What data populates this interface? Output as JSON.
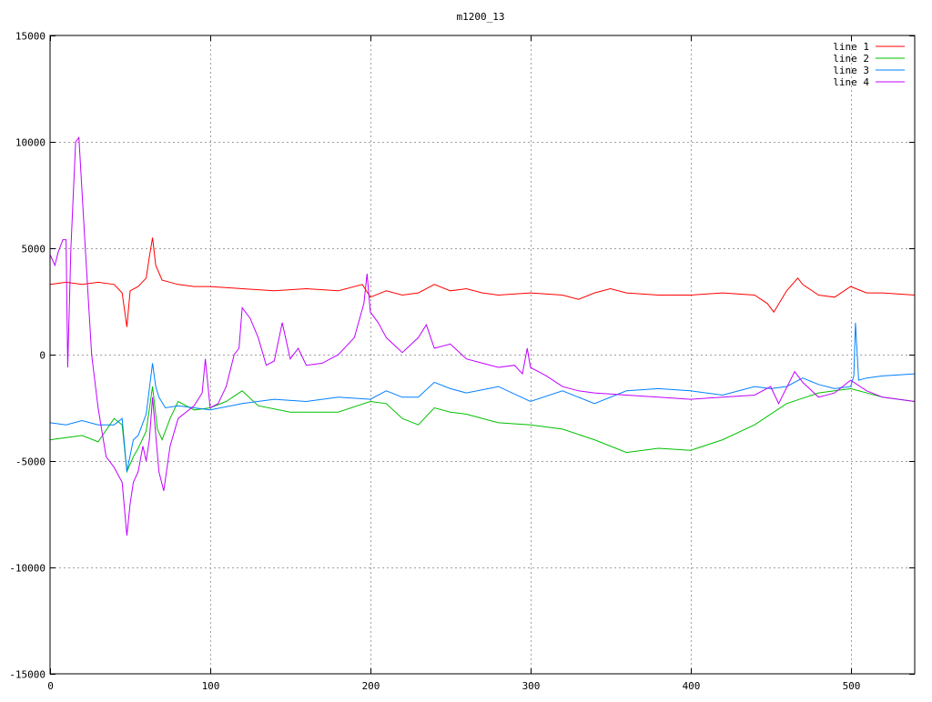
{
  "chart_data": {
    "type": "line",
    "title": "m1200_13",
    "xlabel": "",
    "ylabel": "",
    "xlim": [
      0,
      540
    ],
    "ylim": [
      -15000,
      15000
    ],
    "xticks": [
      0,
      100,
      200,
      300,
      400,
      500
    ],
    "yticks": [
      -15000,
      -10000,
      -5000,
      0,
      5000,
      10000,
      15000
    ],
    "grid": true,
    "legend": "top-right",
    "series": [
      {
        "name": "line 1",
        "color": "#ff0000",
        "x": [
          0,
          10,
          20,
          30,
          40,
          45,
          48,
          50,
          55,
          60,
          62,
          64,
          66,
          70,
          80,
          90,
          100,
          120,
          140,
          160,
          180,
          195,
          200,
          210,
          220,
          230,
          240,
          250,
          260,
          270,
          280,
          300,
          320,
          330,
          340,
          350,
          360,
          380,
          400,
          420,
          440,
          448,
          452,
          460,
          467,
          470,
          480,
          490,
          500,
          510,
          520,
          540
        ],
        "y": [
          3300,
          3400,
          3300,
          3400,
          3300,
          2900,
          1300,
          3000,
          3200,
          3600,
          4600,
          5500,
          4200,
          3500,
          3300,
          3200,
          3200,
          3100,
          3000,
          3100,
          3000,
          3300,
          2700,
          3000,
          2800,
          2900,
          3300,
          3000,
          3100,
          2900,
          2800,
          2900,
          2800,
          2600,
          2900,
          3100,
          2900,
          2800,
          2800,
          2900,
          2800,
          2400,
          2000,
          3000,
          3600,
          3300,
          2800,
          2700,
          3200,
          2900,
          2900,
          2800
        ]
      },
      {
        "name": "line 2",
        "color": "#00c000",
        "x": [
          0,
          10,
          20,
          30,
          40,
          45,
          48,
          52,
          55,
          60,
          64,
          67,
          70,
          75,
          80,
          90,
          100,
          110,
          120,
          130,
          150,
          180,
          200,
          210,
          220,
          230,
          240,
          250,
          260,
          280,
          300,
          320,
          340,
          360,
          380,
          400,
          420,
          440,
          460,
          480,
          500,
          520,
          540
        ],
        "y": [
          -4000,
          -3900,
          -3800,
          -4100,
          -3000,
          -3300,
          -5500,
          -4800,
          -4400,
          -3600,
          -1500,
          -3500,
          -4000,
          -3000,
          -2200,
          -2600,
          -2500,
          -2200,
          -1700,
          -2400,
          -2700,
          -2700,
          -2200,
          -2300,
          -3000,
          -3300,
          -2500,
          -2700,
          -2800,
          -3200,
          -3300,
          -3500,
          -4000,
          -4600,
          -4400,
          -4500,
          -4000,
          -3300,
          -2300,
          -1800,
          -1600,
          -2000,
          -2200
        ]
      },
      {
        "name": "line 3",
        "color": "#0080ff",
        "x": [
          0,
          10,
          20,
          30,
          40,
          45,
          48,
          52,
          55,
          60,
          64,
          66,
          68,
          72,
          80,
          100,
          120,
          140,
          160,
          180,
          200,
          210,
          220,
          230,
          240,
          250,
          260,
          280,
          300,
          320,
          340,
          360,
          380,
          400,
          420,
          440,
          450,
          460,
          470,
          480,
          490,
          500,
          502,
          503,
          505,
          510,
          520,
          540
        ],
        "y": [
          -3200,
          -3300,
          -3100,
          -3300,
          -3300,
          -3000,
          -5500,
          -4000,
          -3800,
          -2800,
          -400,
          -1500,
          -2000,
          -2500,
          -2400,
          -2600,
          -2300,
          -2100,
          -2200,
          -2000,
          -2100,
          -1700,
          -2000,
          -2000,
          -1300,
          -1600,
          -1800,
          -1500,
          -2200,
          -1700,
          -2300,
          -1700,
          -1600,
          -1700,
          -1900,
          -1500,
          -1600,
          -1500,
          -1100,
          -1400,
          -1600,
          -1500,
          -1000,
          1500,
          -1200,
          -1100,
          -1000,
          -900
        ]
      },
      {
        "name": "line 4",
        "color": "#c000ff",
        "x": [
          0,
          3,
          5,
          8,
          10,
          11,
          13,
          16,
          18,
          22,
          26,
          30,
          35,
          40,
          45,
          48,
          50,
          52,
          55,
          58,
          60,
          62,
          64,
          68,
          71,
          75,
          80,
          90,
          95,
          97,
          100,
          105,
          110,
          115,
          118,
          120,
          125,
          130,
          135,
          140,
          145,
          150,
          155,
          160,
          170,
          180,
          190,
          196,
          198,
          200,
          205,
          210,
          220,
          230,
          235,
          240,
          250,
          260,
          270,
          280,
          290,
          295,
          298,
          300,
          305,
          310,
          320,
          330,
          340,
          360,
          380,
          400,
          420,
          440,
          450,
          455,
          465,
          470,
          480,
          490,
          500,
          510,
          520,
          540
        ],
        "y": [
          4700,
          4200,
          4800,
          5400,
          5400,
          -600,
          5000,
          10000,
          10200,
          5000,
          0,
          -2500,
          -4800,
          -5300,
          -6000,
          -8500,
          -7000,
          -6000,
          -5500,
          -4300,
          -5000,
          -4000,
          -2000,
          -5500,
          -6400,
          -4300,
          -3000,
          -2400,
          -1800,
          -200,
          -2500,
          -2300,
          -1500,
          0,
          300,
          2200,
          1700,
          800,
          -500,
          -300,
          1500,
          -200,
          300,
          -500,
          -400,
          0,
          800,
          2400,
          3800,
          2000,
          1500,
          800,
          100,
          800,
          1400,
          300,
          500,
          -200,
          -400,
          -600,
          -500,
          -900,
          300,
          -600,
          -800,
          -1000,
          -1500,
          -1700,
          -1800,
          -1900,
          -2000,
          -2100,
          -2000,
          -1900,
          -1500,
          -2300,
          -800,
          -1300,
          -2000,
          -1800,
          -1200,
          -1700,
          -2000,
          -2200
        ]
      }
    ]
  }
}
